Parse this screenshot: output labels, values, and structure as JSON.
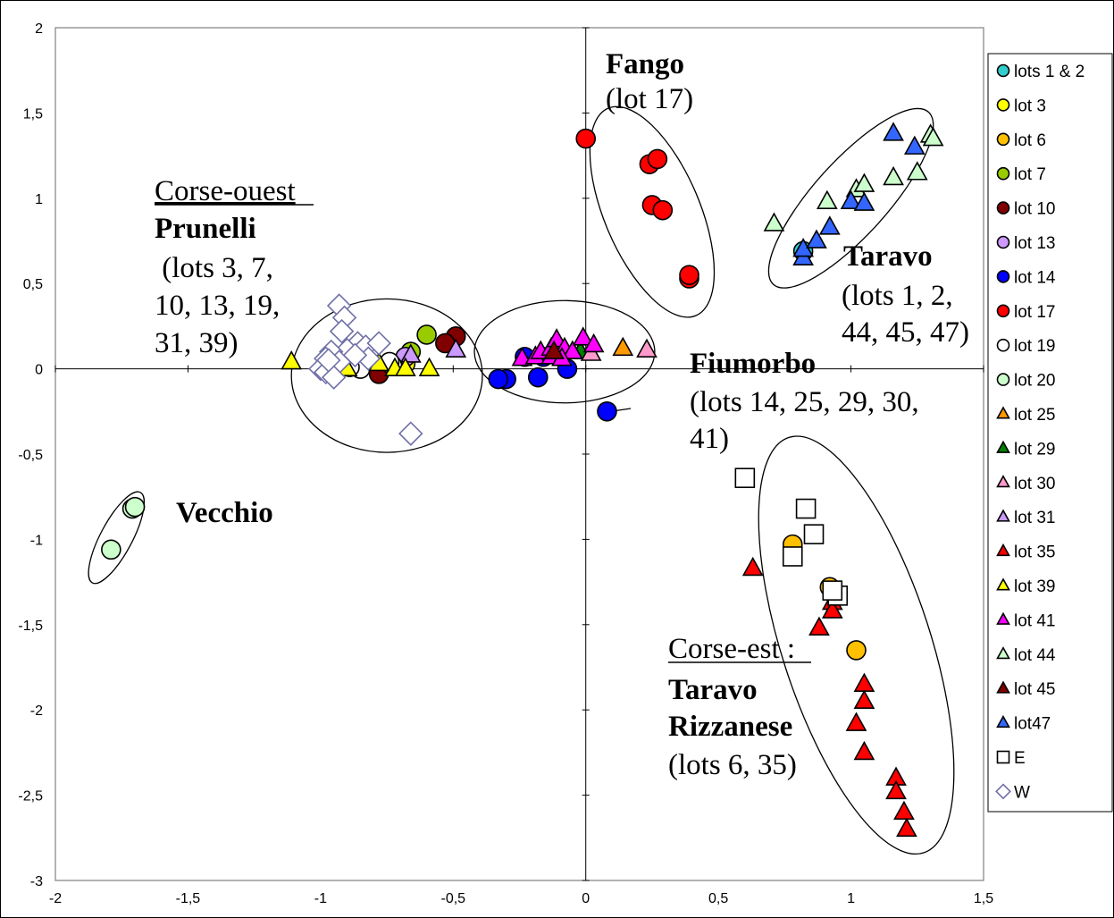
{
  "chart_data": {
    "type": "scatter",
    "xlim": [
      -2,
      1.5
    ],
    "ylim": [
      -3,
      2
    ],
    "x_ticks": [
      "-2",
      "-1,5",
      "-1",
      "-0,5",
      "0",
      "0,5",
      "1",
      "1,5"
    ],
    "y_ticks": [
      "2",
      "1,5",
      "1",
      "0,5",
      "0",
      "-0,5",
      "-1",
      "-1,5",
      "-2",
      "-2,5",
      "-3"
    ],
    "grid": false,
    "legend_position": "right",
    "series": [
      {
        "name": "lots 1 & 2",
        "marker": "circle",
        "color": "#33cccc",
        "points": [
          [
            0.82,
            0.69
          ]
        ]
      },
      {
        "name": "lot 3",
        "marker": "circle",
        "color": "#ffff00",
        "points": [
          [
            -0.68,
            0.03
          ],
          [
            -0.7,
            0.02
          ]
        ]
      },
      {
        "name": "lot 6",
        "marker": "circle",
        "color": "#ffc000",
        "points": [
          [
            0.78,
            -1.03
          ],
          [
            0.92,
            -1.28
          ],
          [
            1.02,
            -1.65
          ]
        ]
      },
      {
        "name": "lot 7",
        "marker": "circle",
        "color": "#99cc00",
        "points": [
          [
            -0.6,
            0.2
          ],
          [
            -0.66,
            0.1
          ]
        ]
      },
      {
        "name": "lot 10",
        "marker": "circle",
        "color": "#800000",
        "points": [
          [
            -0.49,
            0.19
          ],
          [
            -0.53,
            0.15
          ],
          [
            -0.78,
            -0.03
          ],
          [
            -0.86,
            0.02
          ]
        ]
      },
      {
        "name": "lot 13",
        "marker": "circle",
        "color": "#cc99ff",
        "points": [
          [
            -0.68,
            0.07
          ],
          [
            -0.88,
            0.05
          ]
        ]
      },
      {
        "name": "lot 14",
        "marker": "circle",
        "color": "#0000ff",
        "points": [
          [
            -0.3,
            -0.06
          ],
          [
            -0.33,
            -0.06
          ],
          [
            -0.18,
            -0.05
          ],
          [
            -0.07,
            0.0
          ],
          [
            0.08,
            -0.25
          ],
          [
            -0.23,
            0.07
          ],
          [
            -0.16,
            0.07
          ]
        ]
      },
      {
        "name": "lot 17",
        "marker": "circle",
        "color": "#ff0000",
        "points": [
          [
            0.0,
            1.35
          ],
          [
            0.24,
            1.2
          ],
          [
            0.27,
            1.23
          ],
          [
            0.25,
            0.96
          ],
          [
            0.29,
            0.93
          ],
          [
            0.39,
            0.53
          ],
          [
            0.39,
            0.55
          ]
        ]
      },
      {
        "name": "lot 19",
        "marker": "circle",
        "color": "#ffffff",
        "points": [
          [
            -0.85,
            0.0
          ],
          [
            -0.73,
            0.02
          ],
          [
            -0.74,
            0.04
          ],
          [
            -0.89,
            0.01
          ]
        ]
      },
      {
        "name": "lot 20",
        "marker": "circle",
        "color": "#ccffcc",
        "points": [
          [
            -1.71,
            -0.82
          ],
          [
            -1.79,
            -1.06
          ],
          [
            -1.7,
            -0.81
          ]
        ]
      },
      {
        "name": "lot 25",
        "marker": "triangle",
        "color": "#ff9900",
        "points": [
          [
            0.14,
            0.12
          ]
        ]
      },
      {
        "name": "lot 29",
        "marker": "triangle",
        "color": "#008000",
        "points": [
          [
            -0.02,
            0.1
          ]
        ]
      },
      {
        "name": "lot 30",
        "marker": "triangle",
        "color": "#ff99cc",
        "points": [
          [
            0.23,
            0.11
          ],
          [
            0.02,
            0.09
          ]
        ]
      },
      {
        "name": "lot 31",
        "marker": "triangle",
        "color": "#cc99ff",
        "points": [
          [
            -0.49,
            0.11
          ],
          [
            -0.66,
            0.08
          ]
        ]
      },
      {
        "name": "lot 35",
        "marker": "triangle",
        "color": "#ff0000",
        "points": [
          [
            0.63,
            -1.17
          ],
          [
            0.93,
            -1.37
          ],
          [
            0.93,
            -1.42
          ],
          [
            0.88,
            -1.52
          ],
          [
            1.05,
            -1.85
          ],
          [
            1.05,
            -1.95
          ],
          [
            1.02,
            -2.08
          ],
          [
            1.05,
            -2.25
          ],
          [
            1.17,
            -2.4
          ],
          [
            1.17,
            -2.48
          ],
          [
            1.2,
            -2.6
          ],
          [
            1.21,
            -2.7
          ]
        ]
      },
      {
        "name": "lot 39",
        "marker": "triangle",
        "color": "#ffff00",
        "points": [
          [
            -1.11,
            0.04
          ],
          [
            -0.9,
            0.0
          ],
          [
            -0.72,
            0.0
          ],
          [
            -0.68,
            0.0
          ],
          [
            -0.59,
            0.0
          ],
          [
            -0.78,
            0.03
          ]
        ]
      },
      {
        "name": "lot 41",
        "marker": "triangle",
        "color": "#ff00ff",
        "points": [
          [
            -0.24,
            0.06
          ],
          [
            -0.19,
            0.07
          ],
          [
            -0.17,
            0.1
          ],
          [
            -0.13,
            0.12
          ],
          [
            -0.11,
            0.17
          ],
          [
            -0.08,
            0.12
          ],
          [
            -0.05,
            0.1
          ],
          [
            -0.01,
            0.18
          ],
          [
            0.03,
            0.14
          ],
          [
            -0.13,
            0.07
          ],
          [
            -0.09,
            0.06
          ]
        ]
      },
      {
        "name": "lot 44",
        "marker": "triangle",
        "color": "#ccffcc",
        "points": [
          [
            0.71,
            0.85
          ],
          [
            0.91,
            0.98
          ],
          [
            1.02,
            1.05
          ],
          [
            1.05,
            1.08
          ],
          [
            1.16,
            1.12
          ],
          [
            1.25,
            1.15
          ],
          [
            1.3,
            1.37
          ],
          [
            1.31,
            1.35
          ]
        ]
      },
      {
        "name": "lot 45",
        "marker": "triangle",
        "color": "#800000",
        "points": [
          [
            -0.12,
            0.1
          ]
        ]
      },
      {
        "name": "lot47",
        "marker": "triangle",
        "color": "#3366ff",
        "points": [
          [
            0.82,
            0.65
          ],
          [
            0.82,
            0.7
          ],
          [
            0.87,
            0.75
          ],
          [
            0.92,
            0.83
          ],
          [
            1.0,
            0.98
          ],
          [
            1.05,
            0.97
          ],
          [
            1.24,
            1.3
          ],
          [
            1.16,
            1.38
          ]
        ]
      },
      {
        "name": "E",
        "marker": "square",
        "color": "#ffffff",
        "points": [
          [
            0.6,
            -0.64
          ],
          [
            0.83,
            -0.82
          ],
          [
            0.86,
            -0.97
          ],
          [
            0.78,
            -1.1
          ],
          [
            0.95,
            -1.33
          ],
          [
            0.93,
            -1.3
          ]
        ]
      },
      {
        "name": "W",
        "marker": "diamond",
        "color": "#ffffff",
        "points": [
          [
            -0.93,
            0.37
          ],
          [
            -0.91,
            0.3
          ],
          [
            -0.92,
            0.22
          ],
          [
            -0.86,
            0.15
          ],
          [
            -0.83,
            0.13
          ],
          [
            -0.9,
            0.11
          ],
          [
            -0.96,
            0.1
          ],
          [
            -0.98,
            0.06
          ],
          [
            -0.93,
            0.04
          ],
          [
            -1.0,
            0.0
          ],
          [
            -0.98,
            -0.02
          ],
          [
            -0.95,
            -0.05
          ],
          [
            -0.82,
            0.06
          ],
          [
            -0.78,
            0.15
          ],
          [
            -0.66,
            -0.38
          ],
          [
            -0.97,
            0.05
          ],
          [
            -0.87,
            0.08
          ]
        ]
      }
    ],
    "ellipses": [
      {
        "cx": -0.75,
        "cy": -0.04,
        "rx": 0.36,
        "ry": 0.45,
        "rot": 0
      },
      {
        "cx": -0.08,
        "cy": 0.1,
        "rx": 0.34,
        "ry": 0.3,
        "rot": 0
      },
      {
        "cx": 0.25,
        "cy": 0.92,
        "rx": 0.18,
        "ry": 0.66,
        "rot": -23
      },
      {
        "cx": 1.0,
        "cy": 1.0,
        "rx": 0.14,
        "ry": 0.68,
        "rot": 42
      },
      {
        "cx": 1.02,
        "cy": -1.62,
        "rx": 0.28,
        "ry": 1.28,
        "rot": -18
      },
      {
        "cx": -1.77,
        "cy": -0.99,
        "rx": 0.06,
        "ry": 0.3,
        "rot": 28
      }
    ],
    "annotations": {
      "fango_name": "Fango",
      "fango_lot": "(lot 17)",
      "corse_ouest": "Corse-ouest",
      "prunelli": "Prunelli",
      "prunelli_l1": " (lots 3, 7,",
      "prunelli_l2": "10, 13, 19,",
      "prunelli_l3": "31, 39)",
      "taravo_name": "Taravo",
      "taravo_l1": "(lots 1, 2,",
      "taravo_l2": "44, 45, 47)",
      "fiumorbo_name": "Fiumorbo",
      "fiumorbo_l1": "(lots 14, 25, 29, 30,",
      "fiumorbo_l2": "41)",
      "vecchio": "Vecchio",
      "corse_est": "Corse-est :",
      "taravo2": "Taravo",
      "rizzanese": "Rizzanese",
      "rizzanese_lots": "(lots 6, 35)"
    }
  }
}
